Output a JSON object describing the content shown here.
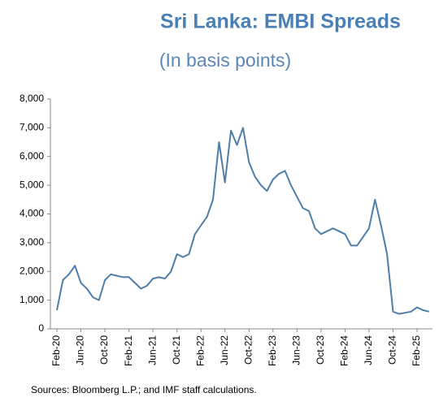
{
  "chart_data": {
    "type": "line",
    "title": "Sri Lanka: EMBI Spreads",
    "subtitle": "(In basis points)",
    "note": "Sources: Bloomberg L.P.; and IMF staff calculations.",
    "categories": [
      "Feb-20",
      null,
      null,
      null,
      "Jun-20",
      null,
      null,
      null,
      "Oct-20",
      null,
      null,
      null,
      "Feb-21",
      null,
      null,
      null,
      "Jun-21",
      null,
      null,
      null,
      "Oct-21",
      null,
      null,
      null,
      "Feb-22",
      null,
      null,
      null,
      "Jun-22",
      null,
      null,
      null,
      "Oct-22",
      null,
      null,
      null,
      "Feb-23",
      null,
      null,
      null,
      "Jun-23",
      null,
      null,
      null,
      "Oct-23",
      null,
      null,
      null,
      "Feb-24",
      null,
      null,
      null,
      "Jun-24",
      null,
      null,
      null,
      "Oct-24",
      null,
      null,
      null,
      "Feb-25",
      null,
      null
    ],
    "series": [
      {
        "name": "EMBI spread",
        "color": "#4f7ea8",
        "values": [
          650,
          1700,
          1900,
          2200,
          1600,
          1400,
          1100,
          1000,
          1700,
          1900,
          1850,
          1800,
          1800,
          1600,
          1400,
          1500,
          1750,
          1800,
          1750,
          2000,
          2600,
          2500,
          2600,
          3300,
          3600,
          3900,
          4500,
          6500,
          5100,
          6900,
          6400,
          7000,
          5800,
          5300,
          5000,
          4800,
          5200,
          5400,
          5500,
          5000,
          4600,
          4200,
          4100,
          3500,
          3300,
          3400,
          3500,
          3400,
          3300,
          2900,
          2900,
          3200,
          3500,
          4500,
          3600,
          2600,
          600,
          520,
          560,
          600,
          750,
          650,
          600
        ]
      }
    ],
    "ylim": [
      0,
      8000
    ],
    "yticks": [
      0,
      {
        "value": 1000,
        "label": "1,000"
      },
      {
        "value": 2000,
        "label": "2,000"
      },
      {
        "value": 3000,
        "label": "3,000"
      },
      {
        "value": 4000,
        "label": "4,000"
      },
      {
        "value": 5000,
        "label": "5,000"
      },
      {
        "value": 6000,
        "label": "6,000"
      },
      {
        "value": 7000,
        "label": "7,000"
      },
      {
        "value": 8000,
        "label": "8,000"
      }
    ],
    "grid": false
  }
}
